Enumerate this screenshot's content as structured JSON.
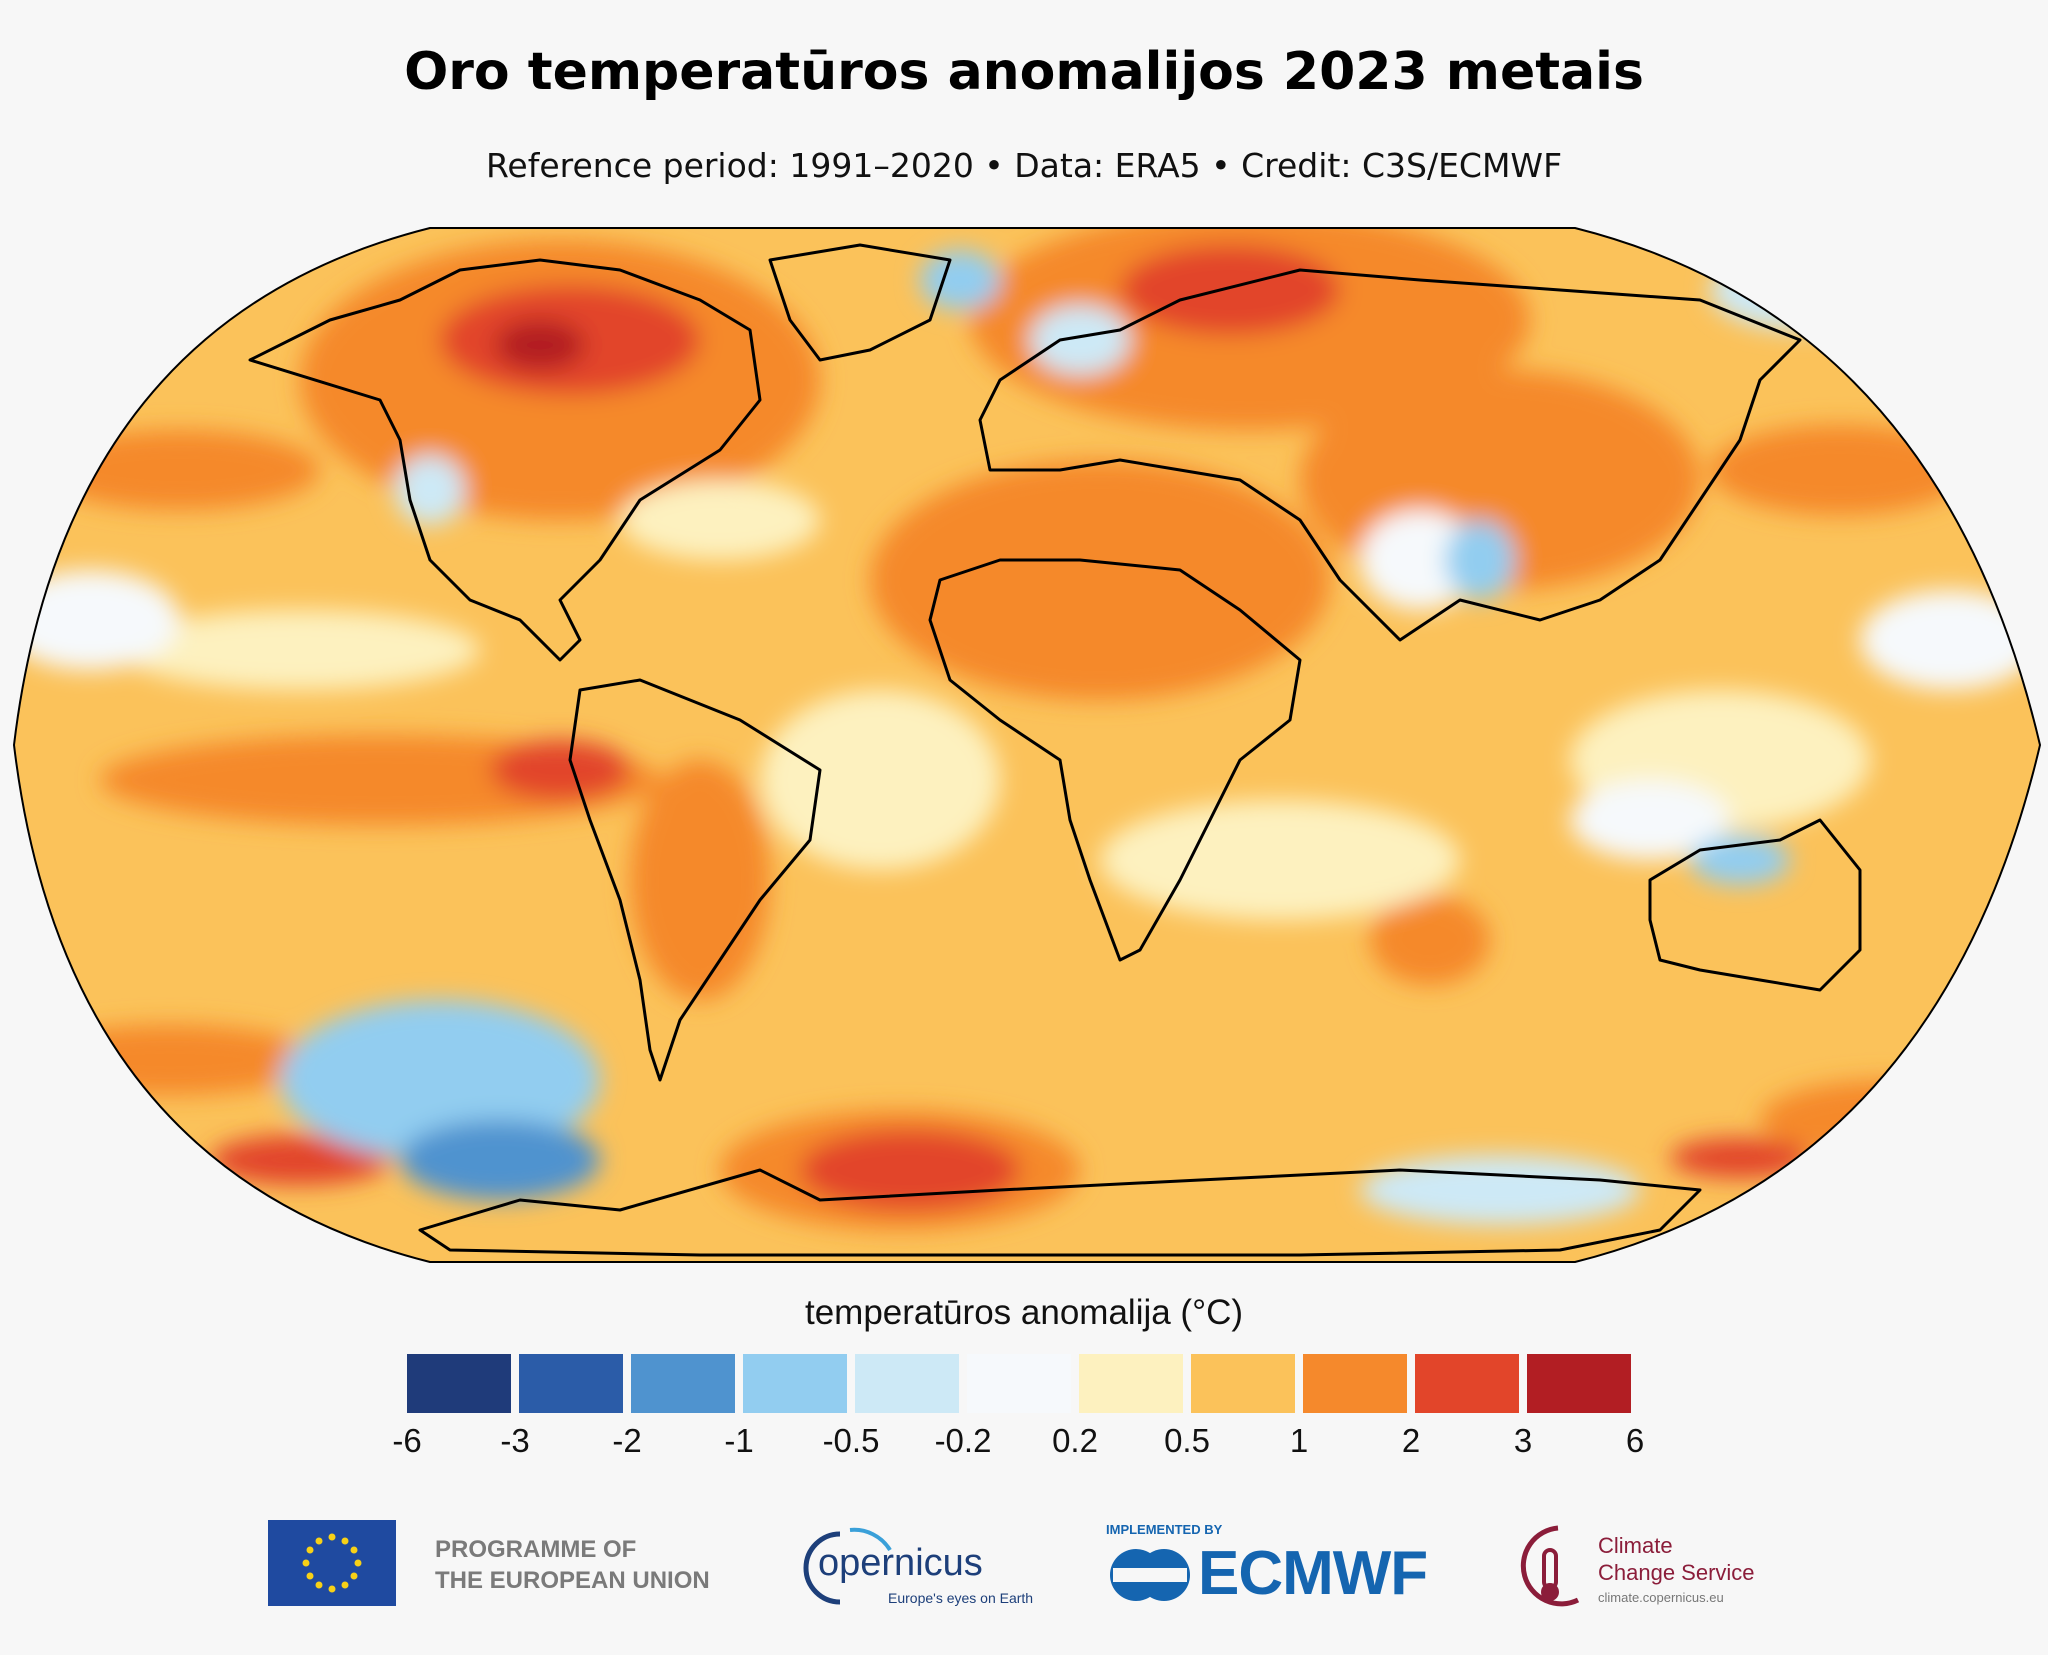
{
  "title": "Oro temperatūros anomalijos 2023 metais",
  "subtitle": "Reference period: 1991–2020 • Data: ERA5 • Credit: C3S/ECMWF",
  "legend": {
    "title": "temperatūros anomalija (°C)",
    "ticks": [
      "-6",
      "-3",
      "-2",
      "-1",
      "-0.5",
      "-0.2",
      "0.2",
      "0.5",
      "1",
      "2",
      "3",
      "6"
    ],
    "colors": [
      "#1f3b7a",
      "#2b5ca8",
      "#4f93cf",
      "#92cdf0",
      "#cde9f6",
      "#f6f9fc",
      "#fdf1bf",
      "#fbc25a",
      "#f5892c",
      "#e2452a",
      "#b21e23"
    ]
  },
  "map": {
    "projection": "Robinson",
    "background_color": "#fbc25a",
    "coastline_color": "#000000"
  },
  "logos": {
    "eu_text_line1": "PROGRAMME OF",
    "eu_text_line2": "THE EUROPEAN UNION",
    "copernicus_name": "opernicus",
    "copernicus_tagline": "Europe's eyes on Earth",
    "ecmwf_implemented_by": "IMPLEMENTED BY",
    "ecmwf_name": "ECMWF",
    "c3s_line1": "Climate",
    "c3s_line2": "Change Service",
    "c3s_url": "climate.copernicus.eu"
  }
}
